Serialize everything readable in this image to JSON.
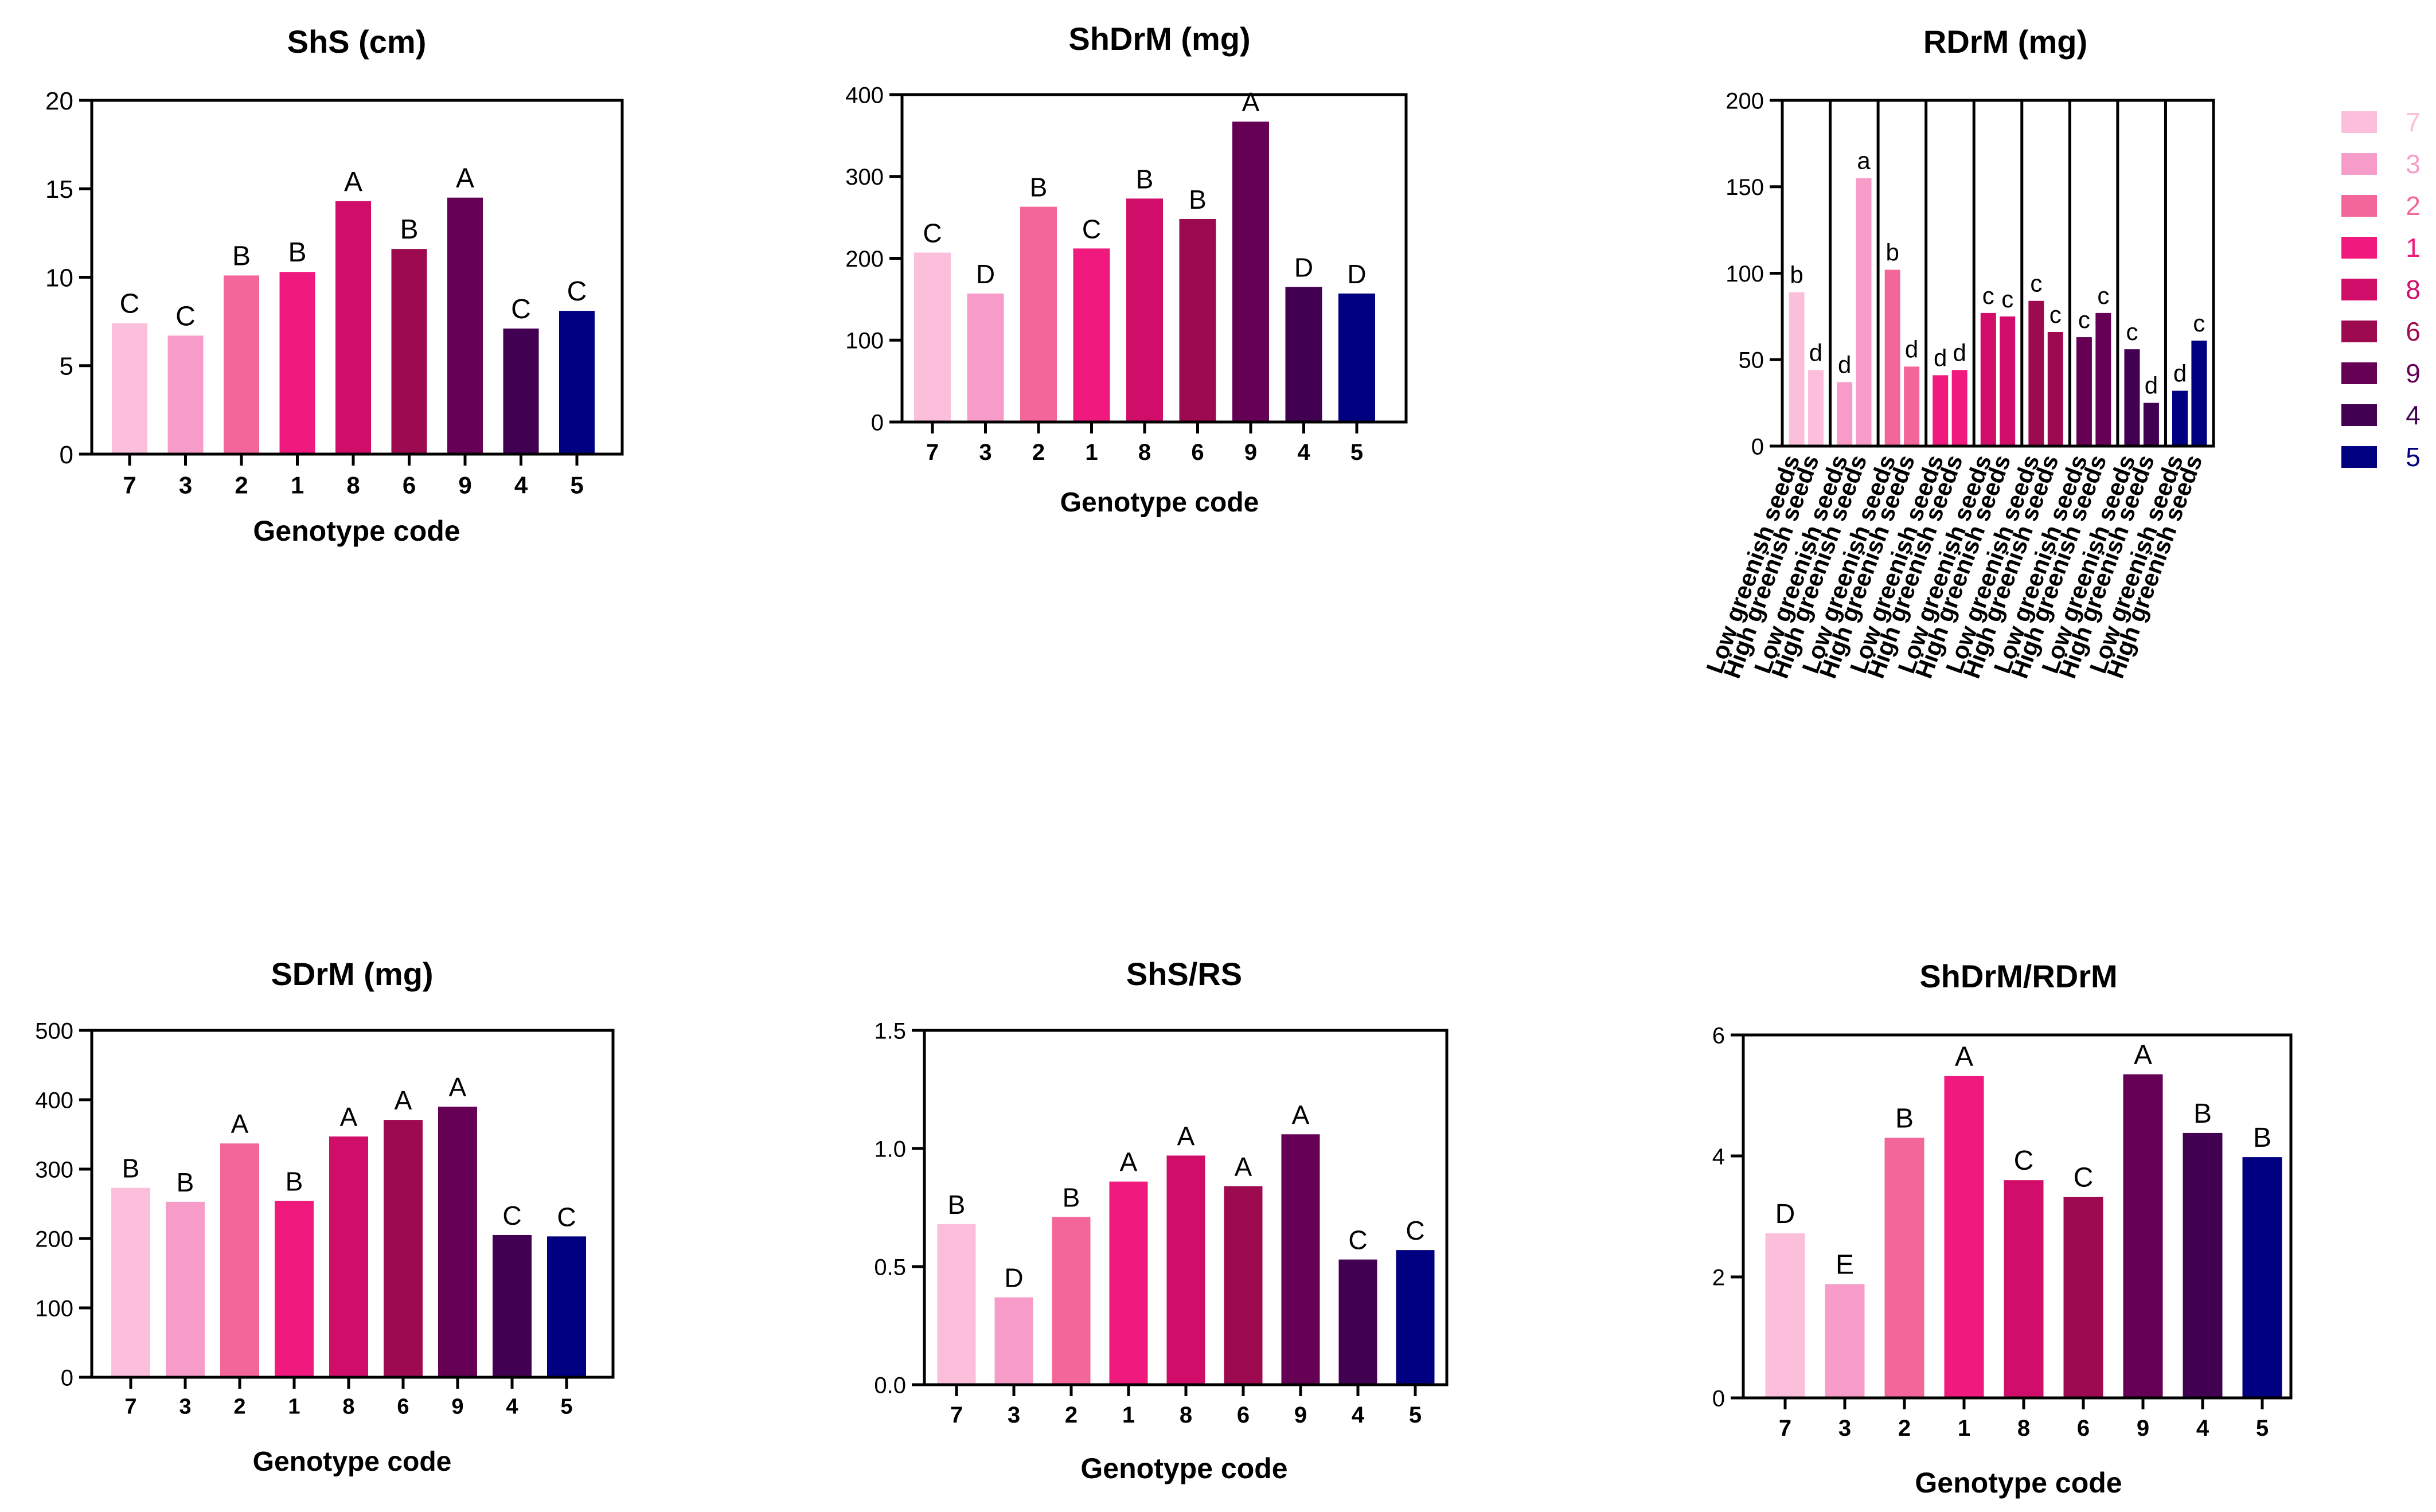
{
  "colors": {
    "7": "#fbbfdc",
    "3": "#f79cc8",
    "2": "#f3669a",
    "1": "#f0197e",
    "8": "#d10d6a",
    "6": "#9e0a4f",
    "9": "#650055",
    "4": "#420052",
    "5": "#000080",
    "axis": "#000000"
  },
  "legend": {
    "items": [
      {
        "label": "7",
        "color": "#fbbfdc"
      },
      {
        "label": "3",
        "color": "#f79cc8"
      },
      {
        "label": "2",
        "color": "#f3669a"
      },
      {
        "label": "1",
        "color": "#f0197e"
      },
      {
        "label": "8",
        "color": "#d10d6a"
      },
      {
        "label": "6",
        "color": "#9e0a4f"
      },
      {
        "label": "9",
        "color": "#650055"
      },
      {
        "label": "4",
        "color": "#420052"
      },
      {
        "label": "5",
        "color": "#000080"
      }
    ]
  },
  "chart_data": [
    {
      "id": "shs",
      "type": "bar",
      "title": "ShS (cm)",
      "xlabel": "Genotype code",
      "ylabel": "",
      "ylim": [
        0,
        20
      ],
      "yticks": [
        "0",
        "5",
        "10",
        "15",
        "20"
      ],
      "categories": [
        "7",
        "3",
        "2",
        "1",
        "8",
        "6",
        "9",
        "4",
        "5"
      ],
      "values": [
        7.4,
        6.7,
        10.1,
        10.3,
        14.3,
        11.6,
        14.5,
        7.1,
        8.1
      ],
      "letters": [
        "C",
        "C",
        "B",
        "B",
        "A",
        "B",
        "A",
        "C",
        "C"
      ]
    },
    {
      "id": "shdrm",
      "type": "bar",
      "title": "ShDrM (mg)",
      "xlabel": "Genotype code",
      "ylabel": "",
      "ylim": [
        0,
        400
      ],
      "yticks": [
        "0",
        "100",
        "200",
        "300",
        "400"
      ],
      "categories": [
        "7",
        "3",
        "2",
        "1",
        "8",
        "6",
        "9",
        "4",
        "5"
      ],
      "values": [
        207,
        157,
        263,
        212,
        273,
        248,
        367,
        165,
        157
      ],
      "letters": [
        "C",
        "D",
        "B",
        "C",
        "B",
        "B",
        "A",
        "D",
        "D"
      ]
    },
    {
      "id": "rdrm",
      "type": "bar",
      "title": "RDrM (mg)",
      "xlabel": "",
      "ylabel": "",
      "ylim": [
        0,
        200
      ],
      "yticks": [
        "0",
        "50",
        "100",
        "150",
        "200"
      ],
      "x_tick_labels": [
        "Low greenish seeds",
        "High greenish seeds"
      ],
      "groups": [
        "7",
        "3",
        "2",
        "1",
        "8",
        "6",
        "9",
        "4",
        "5"
      ],
      "series": [
        {
          "name": "Low greenish seeds",
          "values": [
            89,
            37,
            102,
            41,
            77,
            84,
            63,
            56,
            32
          ],
          "letters": [
            "b",
            "d",
            "b",
            "d",
            "c",
            "c",
            "c",
            "c",
            "d"
          ]
        },
        {
          "name": "High greenish seeds",
          "values": [
            44,
            155,
            46,
            44,
            75,
            66,
            77,
            25,
            61
          ],
          "letters": [
            "d",
            "a",
            "d",
            "d",
            "c",
            "c",
            "c",
            "d",
            "c"
          ]
        }
      ]
    },
    {
      "id": "sdrm",
      "type": "bar",
      "title": "SDrM (mg)",
      "xlabel": "Genotype code",
      "ylabel": "",
      "ylim": [
        0,
        500
      ],
      "yticks": [
        "0",
        "100",
        "200",
        "300",
        "400",
        "500"
      ],
      "categories": [
        "7",
        "3",
        "2",
        "1",
        "8",
        "6",
        "9",
        "4",
        "5"
      ],
      "values": [
        273,
        253,
        337,
        254,
        347,
        371,
        390,
        205,
        203
      ],
      "letters": [
        "B",
        "B",
        "A",
        "B",
        "A",
        "A",
        "A",
        "C",
        "C"
      ]
    },
    {
      "id": "shs_rs",
      "type": "bar",
      "title": "ShS/RS",
      "xlabel": "Genotype code",
      "ylabel": "",
      "ylim": [
        0,
        1.5
      ],
      "yticks": [
        "0.0",
        "0.5",
        "1.0",
        "1.5"
      ],
      "categories": [
        "7",
        "3",
        "2",
        "1",
        "8",
        "6",
        "9",
        "4",
        "5"
      ],
      "values": [
        0.68,
        0.37,
        0.71,
        0.86,
        0.97,
        0.84,
        1.06,
        0.53,
        0.57
      ],
      "letters": [
        "B",
        "D",
        "B",
        "A",
        "A",
        "A",
        "A",
        "C",
        "C"
      ]
    },
    {
      "id": "shdrm_rdrm",
      "type": "bar",
      "title": "ShDrM/RDrM",
      "xlabel": "Genotype code",
      "ylabel": "",
      "ylim": [
        0,
        6
      ],
      "yticks": [
        "0",
        "2",
        "4",
        "6"
      ],
      "categories": [
        "7",
        "3",
        "2",
        "1",
        "8",
        "6",
        "9",
        "4",
        "5"
      ],
      "values": [
        2.72,
        1.88,
        4.3,
        5.32,
        3.6,
        3.32,
        5.35,
        4.38,
        3.98
      ],
      "letters": [
        "D",
        "E",
        "B",
        "A",
        "C",
        "C",
        "A",
        "B",
        "B"
      ]
    }
  ]
}
